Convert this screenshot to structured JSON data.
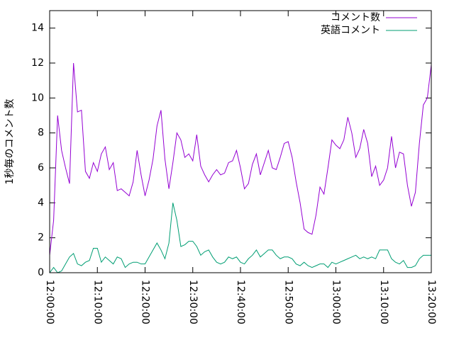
{
  "chart_data": {
    "type": "line",
    "ylabel": "1秒毎のコメント数",
    "x": [
      "12:00:00",
      "12:00:50",
      "12:01:40",
      "12:02:30",
      "12:03:20",
      "12:04:10",
      "12:05:00",
      "12:05:50",
      "12:06:40",
      "12:07:30",
      "12:08:20",
      "12:09:10",
      "12:10:00",
      "12:10:50",
      "12:11:40",
      "12:12:30",
      "12:13:20",
      "12:14:10",
      "12:15:00",
      "12:15:50",
      "12:16:40",
      "12:17:30",
      "12:18:20",
      "12:19:10",
      "12:20:00",
      "12:20:50",
      "12:21:40",
      "12:22:30",
      "12:23:20",
      "12:24:10",
      "12:25:00",
      "12:25:50",
      "12:26:40",
      "12:27:30",
      "12:28:20",
      "12:29:10",
      "12:30:00",
      "12:30:50",
      "12:31:40",
      "12:32:30",
      "12:33:20",
      "12:34:10",
      "12:35:00",
      "12:35:50",
      "12:36:40",
      "12:37:30",
      "12:38:20",
      "12:39:10",
      "12:40:00",
      "12:40:50",
      "12:41:40",
      "12:42:30",
      "12:43:20",
      "12:44:10",
      "12:45:00",
      "12:45:50",
      "12:46:40",
      "12:47:30",
      "12:48:20",
      "12:49:10",
      "12:50:00",
      "12:50:50",
      "12:51:40",
      "12:52:30",
      "12:53:20",
      "12:54:10",
      "12:55:00",
      "12:55:50",
      "12:56:40",
      "12:57:30",
      "12:58:20",
      "12:59:10",
      "13:00:00",
      "13:00:50",
      "13:01:40",
      "13:02:30",
      "13:03:20",
      "13:04:10",
      "13:05:00",
      "13:05:50",
      "13:06:40",
      "13:07:30",
      "13:08:20",
      "13:09:10",
      "13:10:00",
      "13:10:50",
      "13:11:40",
      "13:12:30",
      "13:13:20",
      "13:14:10",
      "13:15:00",
      "13:15:50",
      "13:16:40",
      "13:17:30",
      "13:18:20",
      "13:19:10",
      "13:20:00"
    ],
    "series": [
      {
        "name": "コメント数",
        "color": "#9400d3",
        "values": [
          1,
          3,
          9,
          7,
          6,
          5.1,
          12,
          9.2,
          9.3,
          5.8,
          5.4,
          6.3,
          5.8,
          6.8,
          7.2,
          5.9,
          6.3,
          4.7,
          4.8,
          4.6,
          4.4,
          5.2,
          7,
          5.6,
          4.4,
          5.3,
          6.5,
          8.4,
          9.3,
          6.5,
          4.8,
          6.3,
          8,
          7.6,
          6.6,
          6.8,
          6.4,
          7.9,
          6.1,
          5.6,
          5.2,
          5.6,
          5.9,
          5.6,
          5.7,
          6.3,
          6.4,
          7,
          6,
          4.8,
          5.1,
          6.2,
          6.8,
          5.6,
          6.3,
          7,
          6,
          5.9,
          6.6,
          7.4,
          7.5,
          6.6,
          5.2,
          4,
          2.5,
          2.3,
          2.2,
          3.3,
          4.9,
          4.5,
          6,
          7.6,
          7.3,
          7.1,
          7.6,
          8.9,
          8,
          6.6,
          7.1,
          8.2,
          7.4,
          5.5,
          6.1,
          5,
          5.3,
          6,
          7.8,
          6,
          6.9,
          6.8,
          5,
          3.8,
          4.6,
          7.4,
          9.6,
          10,
          11.9
        ]
      },
      {
        "name": "英語コメント",
        "color": "#009e73",
        "values": [
          0,
          0.3,
          0,
          0.1,
          0.5,
          0.9,
          1.1,
          0.5,
          0.4,
          0.6,
          0.7,
          1.4,
          1.4,
          0.6,
          0.9,
          0.7,
          0.5,
          0.9,
          0.8,
          0.3,
          0.5,
          0.6,
          0.6,
          0.5,
          0.5,
          0.9,
          1.3,
          1.7,
          1.3,
          0.8,
          1.7,
          4,
          3,
          1.5,
          1.6,
          1.8,
          1.8,
          1.5,
          1,
          1.2,
          1.3,
          0.9,
          0.6,
          0.5,
          0.6,
          0.9,
          0.8,
          0.9,
          0.6,
          0.5,
          0.8,
          1,
          1.3,
          0.9,
          1.1,
          1.3,
          1.3,
          1,
          0.8,
          0.9,
          0.9,
          0.8,
          0.5,
          0.4,
          0.6,
          0.4,
          0.3,
          0.4,
          0.5,
          0.5,
          0.3,
          0.6,
          0.5,
          0.6,
          0.7,
          0.8,
          0.9,
          1,
          0.8,
          0.9,
          0.8,
          0.9,
          0.8,
          1.3,
          1.3,
          1.3,
          0.8,
          0.6,
          0.5,
          0.7,
          0.3,
          0.3,
          0.4,
          0.8,
          1,
          1,
          1
        ]
      }
    ],
    "xlim": [
      "12:00:00",
      "13:20:00"
    ],
    "xticks": [
      "12:00:00",
      "12:10:00",
      "12:20:00",
      "12:30:00",
      "12:40:00",
      "12:50:00",
      "13:00:00",
      "13:10:00",
      "13:20:00"
    ],
    "ylim": [
      0,
      15
    ],
    "yticks": [
      0,
      2,
      4,
      6,
      8,
      10,
      12,
      14
    ],
    "legend": "top-right"
  }
}
